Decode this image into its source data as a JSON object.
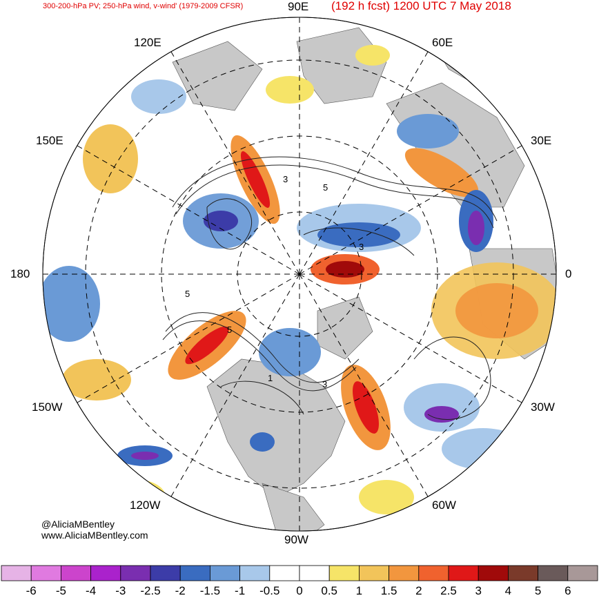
{
  "header": {
    "product": "300-200-hPa PV; 250-hPa wind, v-wind' (1979-2009 CFSR)",
    "forecast": "(192 h fcst) 1200 UTC 7 May 2018"
  },
  "map": {
    "projection": "north-polar-stereographic",
    "longitude_labels": [
      "90E",
      "60E",
      "30E",
      "0",
      "30W",
      "60W",
      "90W",
      "120W",
      "150W",
      "180",
      "150E",
      "120E"
    ],
    "contour_labels": [
      "3",
      "5",
      "5",
      "5",
      "3",
      "1",
      "3"
    ],
    "land_color": "#c8c8c8",
    "ocean_color": "#ffffff"
  },
  "credit": {
    "handle": "@AliciaMBentley",
    "site": "www.AliciaMBentley.com"
  },
  "colorbar": {
    "ticks": [
      "-6",
      "-5",
      "-4",
      "-3",
      "-2.5",
      "-2",
      "-1.5",
      "-1",
      "-0.5",
      "0",
      "0.5",
      "1",
      "1.5",
      "2",
      "2.5",
      "3",
      "4",
      "5",
      "6"
    ],
    "colors": [
      "#e6b3e6",
      "#e07ae0",
      "#cc44cc",
      "#aa22cc",
      "#7a2eb0",
      "#3c3ca8",
      "#3a6cc0",
      "#6a9ad6",
      "#a8c8ea",
      "#ffffff",
      "#ffffff",
      "#f6e468",
      "#f2c45a",
      "#f2963e",
      "#f0622e",
      "#e01818",
      "#a00a0a",
      "#7a3a2a",
      "#6a5a5a",
      "#a89898"
    ]
  }
}
